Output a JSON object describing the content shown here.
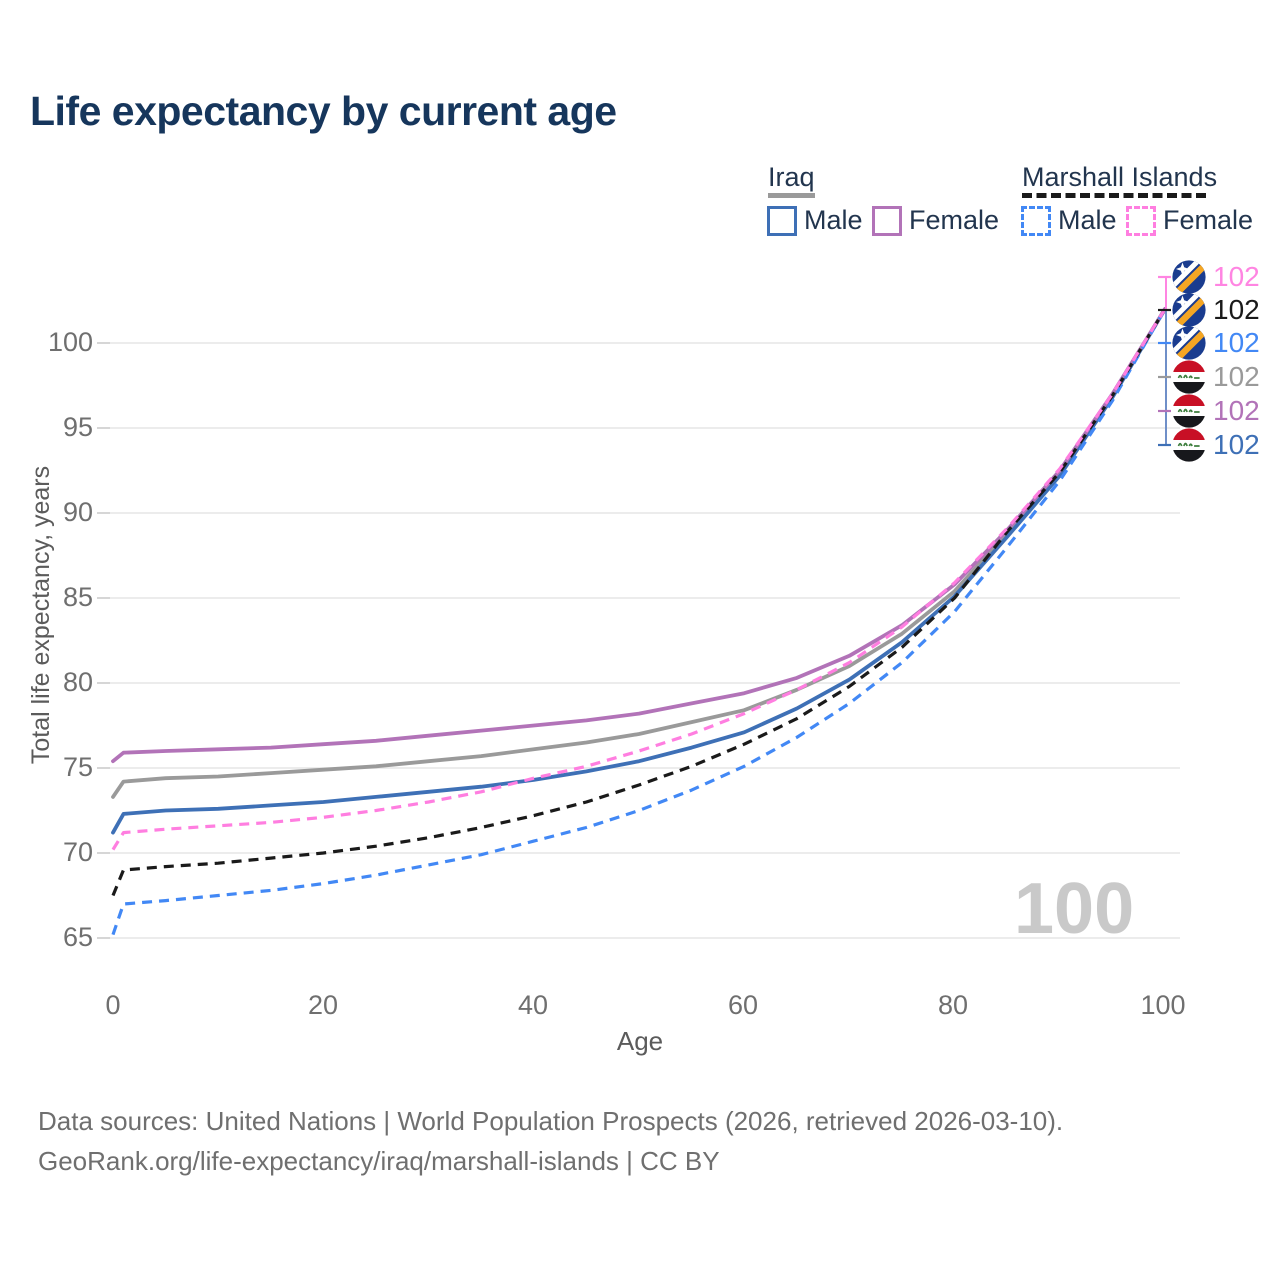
{
  "title": "Life expectancy by current age",
  "legend": {
    "groups": [
      {
        "label": "Iraq",
        "line_style": "solid",
        "underline_color": "#9a9a9a",
        "items": [
          {
            "label": "Male",
            "color": "#3e70b6"
          },
          {
            "label": "Female",
            "color": "#b273b8"
          }
        ]
      },
      {
        "label": "Marshall Islands",
        "line_style": "dashed",
        "underline_color": "#1a1a1a",
        "items": [
          {
            "label": "Male",
            "color": "#4288f5"
          },
          {
            "label": "Female",
            "color": "#ff7ee0"
          }
        ]
      }
    ]
  },
  "axes": {
    "y_title": "Total life expectancy, years",
    "x_title": "Age",
    "y_ticks": [
      100,
      95,
      90,
      85,
      80,
      75,
      70,
      65
    ],
    "x_ticks": [
      0,
      20,
      40,
      60,
      80,
      100
    ]
  },
  "watermark": "100",
  "end_labels": [
    {
      "value": "102",
      "flag": "marshall-islands",
      "color": "#ff85e2",
      "series": "Marshall Islands Female"
    },
    {
      "value": "102",
      "flag": "marshall-islands",
      "color": "#1a1a1a",
      "series": "Marshall Islands Both sexes"
    },
    {
      "value": "102",
      "flag": "marshall-islands",
      "color": "#4288f5",
      "series": "Marshall Islands Male"
    },
    {
      "value": "102",
      "flag": "iraq",
      "color": "#9a9a9a",
      "series": "Iraq Both sexes"
    },
    {
      "value": "102",
      "flag": "iraq",
      "color": "#b273b8",
      "series": "Iraq Female"
    },
    {
      "value": "102",
      "flag": "iraq",
      "color": "#3e70b6",
      "series": "Iraq Male"
    }
  ],
  "footer": {
    "line1": "Data sources: United Nations | World Population Prospects (2026, retrieved 2026-03-10).",
    "line2": "GeoRank.org/life-expectancy/iraq/marshall-islands | CC BY"
  },
  "chart_data": {
    "type": "line",
    "title": "Life expectancy by current age",
    "xlabel": "Age",
    "ylabel": "Total life expectancy, years",
    "xlim": [
      0,
      100
    ],
    "ylim": [
      63,
      103
    ],
    "grid": "horizontal",
    "legend_position": "top-right",
    "x": [
      0,
      1,
      5,
      10,
      15,
      20,
      25,
      30,
      35,
      40,
      45,
      50,
      55,
      60,
      65,
      70,
      75,
      80,
      85,
      90,
      95,
      100
    ],
    "series": [
      {
        "name": "Iraq Female",
        "color": "#b273b8",
        "dash": "solid",
        "values": [
          75.4,
          75.9,
          76.0,
          76.1,
          76.2,
          76.4,
          76.6,
          76.9,
          77.2,
          77.5,
          77.8,
          78.2,
          78.8,
          79.4,
          80.3,
          81.6,
          83.4,
          85.8,
          89.0,
          92.5,
          97.0,
          102
        ]
      },
      {
        "name": "Iraq Both sexes",
        "color": "#9a9a9a",
        "dash": "solid",
        "values": [
          73.3,
          74.2,
          74.4,
          74.5,
          74.7,
          74.9,
          75.1,
          75.4,
          75.7,
          76.1,
          76.5,
          77.0,
          77.7,
          78.4,
          79.6,
          81.0,
          82.9,
          85.4,
          88.8,
          92.3,
          96.9,
          102
        ]
      },
      {
        "name": "Iraq Male",
        "color": "#3e70b6",
        "dash": "solid",
        "values": [
          71.2,
          72.3,
          72.5,
          72.6,
          72.8,
          73.0,
          73.3,
          73.6,
          73.9,
          74.3,
          74.8,
          75.4,
          76.2,
          77.1,
          78.5,
          80.2,
          82.4,
          85.1,
          88.6,
          92.2,
          96.8,
          102
        ]
      },
      {
        "name": "Marshall Islands Female",
        "color": "#ff7ee0",
        "dash": "dashed",
        "values": [
          70.2,
          71.2,
          71.4,
          71.6,
          71.8,
          72.1,
          72.5,
          73.0,
          73.6,
          74.4,
          75.1,
          76.0,
          77.0,
          78.2,
          79.6,
          81.2,
          83.3,
          85.9,
          89.1,
          92.6,
          97.0,
          102
        ]
      },
      {
        "name": "Marshall Islands Both sexes",
        "color": "#1a1a1a",
        "dash": "dashed",
        "values": [
          67.5,
          69.0,
          69.2,
          69.4,
          69.7,
          70.0,
          70.4,
          70.9,
          71.5,
          72.2,
          73.0,
          74.0,
          75.1,
          76.4,
          77.9,
          79.8,
          82.1,
          85.0,
          88.9,
          92.4,
          96.9,
          102
        ]
      },
      {
        "name": "Marshall Islands Male",
        "color": "#4288f5",
        "dash": "dashed",
        "values": [
          65.2,
          67.0,
          67.2,
          67.5,
          67.8,
          68.2,
          68.7,
          69.3,
          69.9,
          70.7,
          71.5,
          72.5,
          73.7,
          75.1,
          76.8,
          78.8,
          81.2,
          84.2,
          88.0,
          91.9,
          96.6,
          102
        ]
      }
    ]
  }
}
